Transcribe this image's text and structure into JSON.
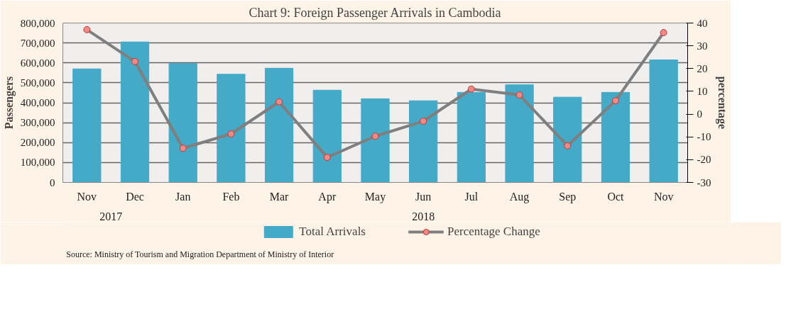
{
  "chart_data": {
    "type": "bar",
    "title": "Chart 9: Foreign Passenger Arrivals in Cambodia",
    "categories": [
      "Nov",
      "Dec",
      "Jan",
      "Feb",
      "Mar",
      "Apr",
      "May",
      "Jun",
      "Jul",
      "Aug",
      "Sep",
      "Oct",
      "Nov"
    ],
    "series": [
      {
        "name": "Total Arrivals",
        "color": "#45a9c8",
        "values": [
          570000,
          705000,
          597000,
          543000,
          573000,
          463000,
          420000,
          410000,
          452000,
          490000,
          428000,
          452000,
          615000
        ]
      },
      {
        "name": "Percentage Change",
        "type": "line",
        "axis": "y2",
        "color": "#7f7f7f",
        "marker": "circle",
        "values": [
          37.1,
          23.1,
          -15.0,
          -8.7,
          5.4,
          -19.0,
          -9.7,
          -3.1,
          11.0,
          8.4,
          -13.9,
          5.9,
          35.8
        ]
      }
    ],
    "ylabel": "Passengers",
    "y2label": "percentage",
    "ylim": [
      0,
      800000
    ],
    "yticks": [
      {
        "value": 0,
        "label": "0"
      },
      {
        "value": 100000,
        "label": "100,000"
      },
      {
        "value": 200000,
        "label": "200,000"
      },
      {
        "value": 300000,
        "label": "300,000"
      },
      {
        "value": 400000,
        "label": "400,000"
      },
      {
        "value": 500000,
        "label": "500,000"
      },
      {
        "value": 600000,
        "label": "600,000"
      },
      {
        "value": 700000,
        "label": "700,000"
      },
      {
        "value": 800000,
        "label": "800,000"
      }
    ],
    "y2lim": [
      -30,
      40
    ],
    "y2ticks": [
      -30,
      -20,
      -10,
      0,
      10,
      20,
      30,
      40
    ],
    "grid": "y",
    "legend": "bottom",
    "annotations": [
      "2017",
      "2018",
      "Source: Ministry of Tourism and Migration Department of Ministry of Interior"
    ]
  }
}
